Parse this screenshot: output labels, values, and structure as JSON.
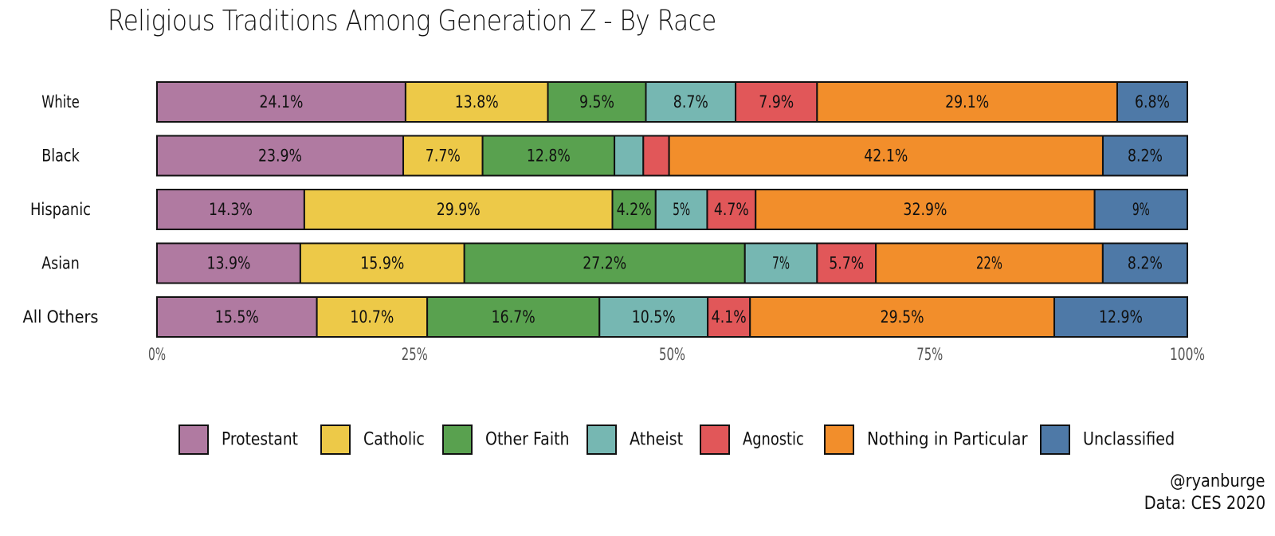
{
  "chart_data": {
    "type": "bar",
    "orientation": "horizontal",
    "stacked": true,
    "title": "Religious Traditions Among Generation Z - By Race",
    "xlabel": "",
    "ylabel": "",
    "xlim": [
      0,
      100
    ],
    "x_ticks": [
      {
        "value": 0,
        "label": "0%"
      },
      {
        "value": 25,
        "label": "25%"
      },
      {
        "value": 50,
        "label": "50%"
      },
      {
        "value": 75,
        "label": "75%"
      },
      {
        "value": 100,
        "label": "100%"
      }
    ],
    "legend_position": "bottom",
    "categories": [
      "White",
      "Black",
      "Hispanic",
      "Asian",
      "All Others"
    ],
    "series": [
      {
        "name": "Protestant",
        "color": "#b07aa1",
        "values": [
          24.1,
          23.9,
          14.3,
          13.9,
          15.5
        ],
        "labels": [
          "24.1%",
          "23.9%",
          "14.3%",
          "13.9%",
          "15.5%"
        ]
      },
      {
        "name": "Catholic",
        "color": "#edc948",
        "values": [
          13.8,
          7.7,
          29.9,
          15.9,
          10.7
        ],
        "labels": [
          "13.8%",
          "7.7%",
          "29.9%",
          "15.9%",
          "10.7%"
        ]
      },
      {
        "name": "Other Faith",
        "color": "#59a14f",
        "values": [
          9.5,
          12.8,
          4.2,
          27.2,
          16.7
        ],
        "labels": [
          "9.5%",
          "12.8%",
          "4.2%",
          "27.2%",
          "16.7%"
        ]
      },
      {
        "name": "Atheist",
        "color": "#76b7b2",
        "values": [
          8.7,
          2.8,
          5,
          7,
          10.5
        ],
        "labels": [
          "8.7%",
          "",
          "5%",
          "7%",
          "10.5%"
        ]
      },
      {
        "name": "Agnostic",
        "color": "#e15759",
        "values": [
          7.9,
          2.5,
          4.7,
          5.7,
          4.1
        ],
        "labels": [
          "7.9%",
          "",
          "4.7%",
          "5.7%",
          "4.1%"
        ]
      },
      {
        "name": "Nothing in Particular",
        "color": "#f28e2b",
        "values": [
          29.1,
          42.1,
          32.9,
          22,
          29.5
        ],
        "labels": [
          "29.1%",
          "42.1%",
          "32.9%",
          "22%",
          "29.5%"
        ]
      },
      {
        "name": "Unclassified",
        "color": "#4e79a7",
        "values": [
          6.8,
          8.2,
          9,
          8.2,
          12.9
        ],
        "labels": [
          "6.8%",
          "8.2%",
          "9%",
          "8.2%",
          "12.9%"
        ]
      }
    ]
  },
  "credits": {
    "handle": "@ryanburge",
    "source": "Data: CES 2020"
  }
}
